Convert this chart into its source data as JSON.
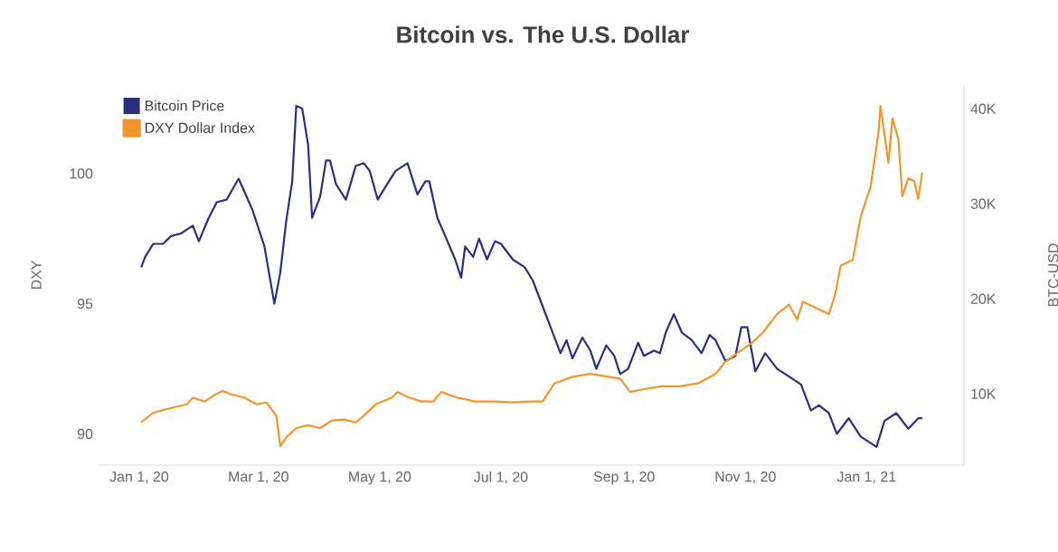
{
  "chart_data": {
    "type": "line",
    "title": "Bitcoin vs. The U.S. Dollar",
    "ylabel": "DXY",
    "y2label": "BTC-USD",
    "xlim": [
      "2019-12-12",
      "2021-02-19"
    ],
    "xticks": [
      {
        "value": "2020-01-01",
        "label": "Jan 1, 20"
      },
      {
        "value": "2020-03-01",
        "label": "Mar 1, 20"
      },
      {
        "value": "2020-05-01",
        "label": "May 1, 20"
      },
      {
        "value": "2020-07-01",
        "label": "Jul 1, 20"
      },
      {
        "value": "2020-09-01",
        "label": "Sep 1, 20"
      },
      {
        "value": "2020-11-01",
        "label": "Nov 1, 20"
      },
      {
        "value": "2021-01-01",
        "label": "Jan 1, 21"
      }
    ],
    "ylim": [
      88.8,
      103.4
    ],
    "yticks": [
      90,
      95,
      100
    ],
    "y2lim": [
      2500,
      42500
    ],
    "y2ticks": [
      {
        "value": 10000,
        "label": "10K"
      },
      {
        "value": 20000,
        "label": "20K"
      },
      {
        "value": 30000,
        "label": "30K"
      },
      {
        "value": 40000,
        "label": "40K"
      }
    ],
    "legend": "top left",
    "marker": "none",
    "line_style": "solid",
    "series": [
      {
        "name": "Bitcoin Price",
        "color": "#2b2d7f",
        "axis": "y",
        "x": [
          "2020-01-02",
          "2020-01-04",
          "2020-01-08",
          "2020-01-13",
          "2020-01-17",
          "2020-01-22",
          "2020-01-28",
          "2020-01-31",
          "2020-02-05",
          "2020-02-09",
          "2020-02-14",
          "2020-02-17",
          "2020-02-20",
          "2020-02-23",
          "2020-02-27",
          "2020-03-04",
          "2020-03-09",
          "2020-03-12",
          "2020-03-15",
          "2020-03-18",
          "2020-03-20",
          "2020-03-23",
          "2020-03-26",
          "2020-03-28",
          "2020-04-01",
          "2020-04-04",
          "2020-04-06",
          "2020-04-09",
          "2020-04-14",
          "2020-04-19",
          "2020-04-23",
          "2020-04-26",
          "2020-04-30",
          "2020-05-04",
          "2020-05-09",
          "2020-05-15",
          "2020-05-20",
          "2020-05-24",
          "2020-05-26",
          "2020-05-30",
          "2020-06-03",
          "2020-06-08",
          "2020-06-11",
          "2020-06-13",
          "2020-06-17",
          "2020-06-20",
          "2020-06-24",
          "2020-06-28",
          "2020-07-01",
          "2020-07-07",
          "2020-07-13",
          "2020-07-17",
          "2020-07-22",
          "2020-07-27",
          "2020-07-31",
          "2020-08-03",
          "2020-08-06",
          "2020-08-11",
          "2020-08-15",
          "2020-08-18",
          "2020-08-23",
          "2020-08-27",
          "2020-08-30",
          "2020-09-03",
          "2020-09-08",
          "2020-09-11",
          "2020-09-16",
          "2020-09-19",
          "2020-09-22",
          "2020-09-26",
          "2020-09-30",
          "2020-10-05",
          "2020-10-10",
          "2020-10-14",
          "2020-10-17",
          "2020-10-22",
          "2020-10-27",
          "2020-10-30",
          "2020-11-02",
          "2020-11-06",
          "2020-11-11",
          "2020-11-17",
          "2020-11-23",
          "2020-11-29",
          "2020-12-04",
          "2020-12-08",
          "2020-12-13",
          "2020-12-17",
          "2020-12-23",
          "2020-12-29",
          "2021-01-06",
          "2021-01-10",
          "2021-01-16",
          "2021-01-22",
          "2021-01-27",
          "2021-01-29"
        ],
        "values": [
          96.4,
          96.8,
          97.3,
          97.3,
          97.6,
          97.7,
          98.0,
          97.4,
          98.3,
          98.9,
          99.0,
          99.4,
          99.8,
          99.3,
          98.6,
          97.2,
          95.0,
          96.2,
          98.2,
          99.7,
          102.6,
          102.5,
          101.1,
          98.3,
          99.1,
          100.5,
          100.5,
          99.6,
          99.0,
          100.3,
          100.4,
          100.1,
          99.0,
          99.5,
          100.1,
          100.4,
          99.2,
          99.7,
          99.7,
          98.3,
          97.6,
          96.7,
          96.0,
          97.2,
          96.8,
          97.5,
          96.7,
          97.4,
          97.3,
          96.7,
          96.4,
          95.9,
          94.9,
          93.9,
          93.1,
          93.6,
          92.9,
          93.7,
          93.2,
          92.5,
          93.4,
          93.0,
          92.3,
          92.5,
          93.5,
          93.0,
          93.2,
          93.1,
          93.9,
          94.6,
          93.9,
          93.6,
          93.1,
          93.8,
          93.6,
          92.8,
          93.0,
          94.1,
          94.1,
          92.4,
          93.1,
          92.5,
          92.2,
          91.9,
          90.9,
          91.1,
          90.8,
          90.0,
          90.6,
          89.9,
          89.5,
          90.5,
          90.8,
          90.2,
          90.6,
          90.6
        ]
      },
      {
        "name": "DXY Dollar Index",
        "color": "#f0962a",
        "axis": "y2",
        "x": [
          "2020-01-02",
          "2020-01-08",
          "2020-01-13",
          "2020-01-19",
          "2020-01-25",
          "2020-01-28",
          "2020-02-03",
          "2020-02-08",
          "2020-02-12",
          "2020-02-17",
          "2020-02-23",
          "2020-02-29",
          "2020-03-05",
          "2020-03-10",
          "2020-03-12",
          "2020-03-15",
          "2020-03-20",
          "2020-03-26",
          "2020-04-01",
          "2020-04-07",
          "2020-04-13",
          "2020-04-19",
          "2020-04-23",
          "2020-04-29",
          "2020-05-07",
          "2020-05-10",
          "2020-05-16",
          "2020-05-22",
          "2020-05-28",
          "2020-06-01",
          "2020-06-09",
          "2020-06-18",
          "2020-06-27",
          "2020-07-07",
          "2020-07-16",
          "2020-07-22",
          "2020-07-28",
          "2020-08-06",
          "2020-08-15",
          "2020-08-24",
          "2020-08-30",
          "2020-09-04",
          "2020-09-11",
          "2020-09-20",
          "2020-09-29",
          "2020-10-08",
          "2020-10-17",
          "2020-10-22",
          "2020-10-28",
          "2020-11-04",
          "2020-11-10",
          "2020-11-17",
          "2020-11-23",
          "2020-11-27",
          "2020-11-30",
          "2020-12-06",
          "2020-12-13",
          "2020-12-16",
          "2020-12-19",
          "2020-12-25",
          "2020-12-29",
          "2021-01-03",
          "2021-01-07",
          "2021-01-08",
          "2021-01-12",
          "2021-01-14",
          "2021-01-17",
          "2021-01-19",
          "2021-01-22",
          "2021-01-25",
          "2021-01-27",
          "2021-01-29"
        ],
        "values": [
          7000,
          8000,
          8300,
          8600,
          8900,
          9600,
          9200,
          9900,
          10300,
          9900,
          9600,
          8900,
          9100,
          7700,
          4500,
          5400,
          6400,
          6700,
          6400,
          7200,
          7300,
          7000,
          7700,
          8900,
          9600,
          10200,
          9600,
          9200,
          9200,
          10200,
          9600,
          9200,
          9200,
          9100,
          9200,
          9200,
          11100,
          11800,
          12100,
          11800,
          11600,
          10200,
          10500,
          10800,
          10800,
          11100,
          12100,
          13400,
          14300,
          15300,
          16500,
          18400,
          19400,
          17800,
          19700,
          19100,
          18400,
          20300,
          23500,
          24100,
          28600,
          31800,
          37500,
          40300,
          34300,
          39000,
          36800,
          30800,
          32700,
          32400,
          30500,
          33300
        ]
      }
    ]
  }
}
